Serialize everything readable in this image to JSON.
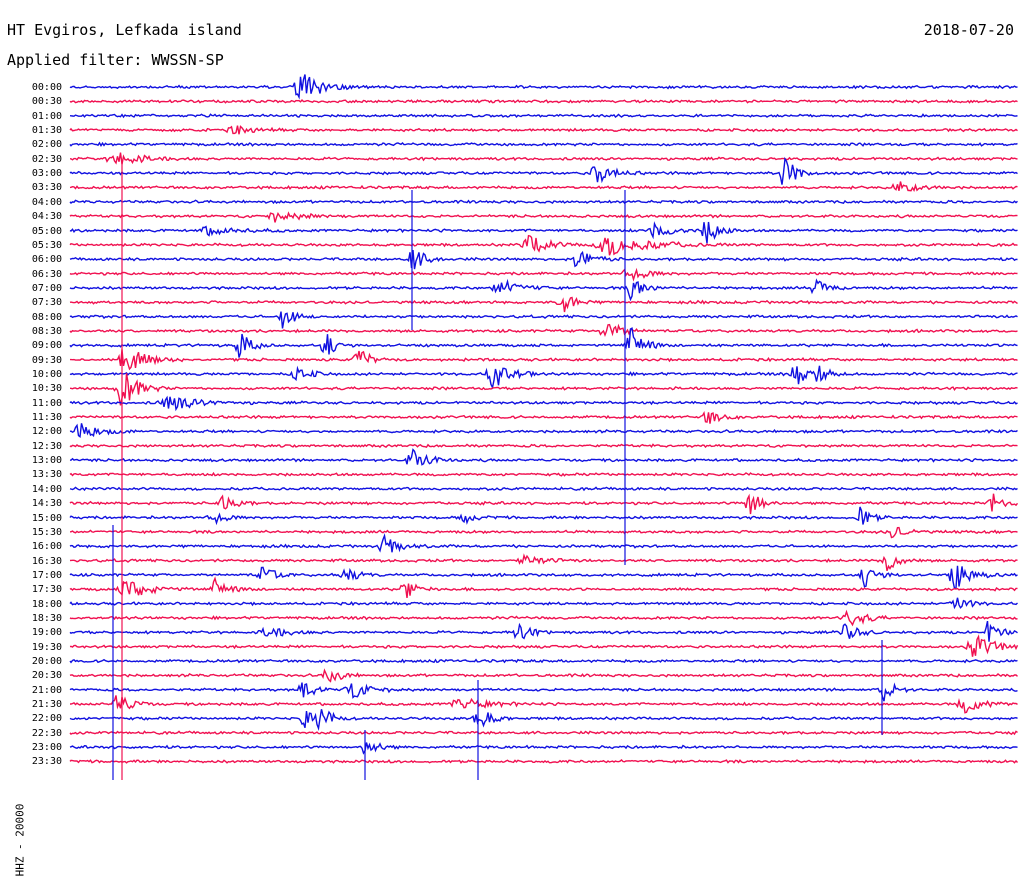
{
  "header": {
    "station": "HT Evgiros, Lefkada island",
    "filter": "Applied filter: WWSSN-SP",
    "date": "2018-07-20"
  },
  "channel_label": "HHZ - 20000",
  "time_rows": [
    "00:00",
    "00:30",
    "01:00",
    "01:30",
    "02:00",
    "02:30",
    "03:00",
    "03:30",
    "04:00",
    "04:30",
    "05:00",
    "05:30",
    "06:00",
    "06:30",
    "07:00",
    "07:30",
    "08:00",
    "08:30",
    "09:00",
    "09:30",
    "10:00",
    "10:30",
    "11:00",
    "11:30",
    "12:00",
    "12:30",
    "13:00",
    "13:30",
    "14:00",
    "14:30",
    "15:00",
    "15:30",
    "16:00",
    "16:30",
    "17:00",
    "17:30",
    "18:00",
    "18:30",
    "19:00",
    "19:30",
    "20:00",
    "20:30",
    "21:00",
    "21:30",
    "22:00",
    "22:30",
    "23:00",
    "23:30"
  ],
  "colors": {
    "even_row": "#1010e0",
    "odd_row": "#f01050"
  }
}
